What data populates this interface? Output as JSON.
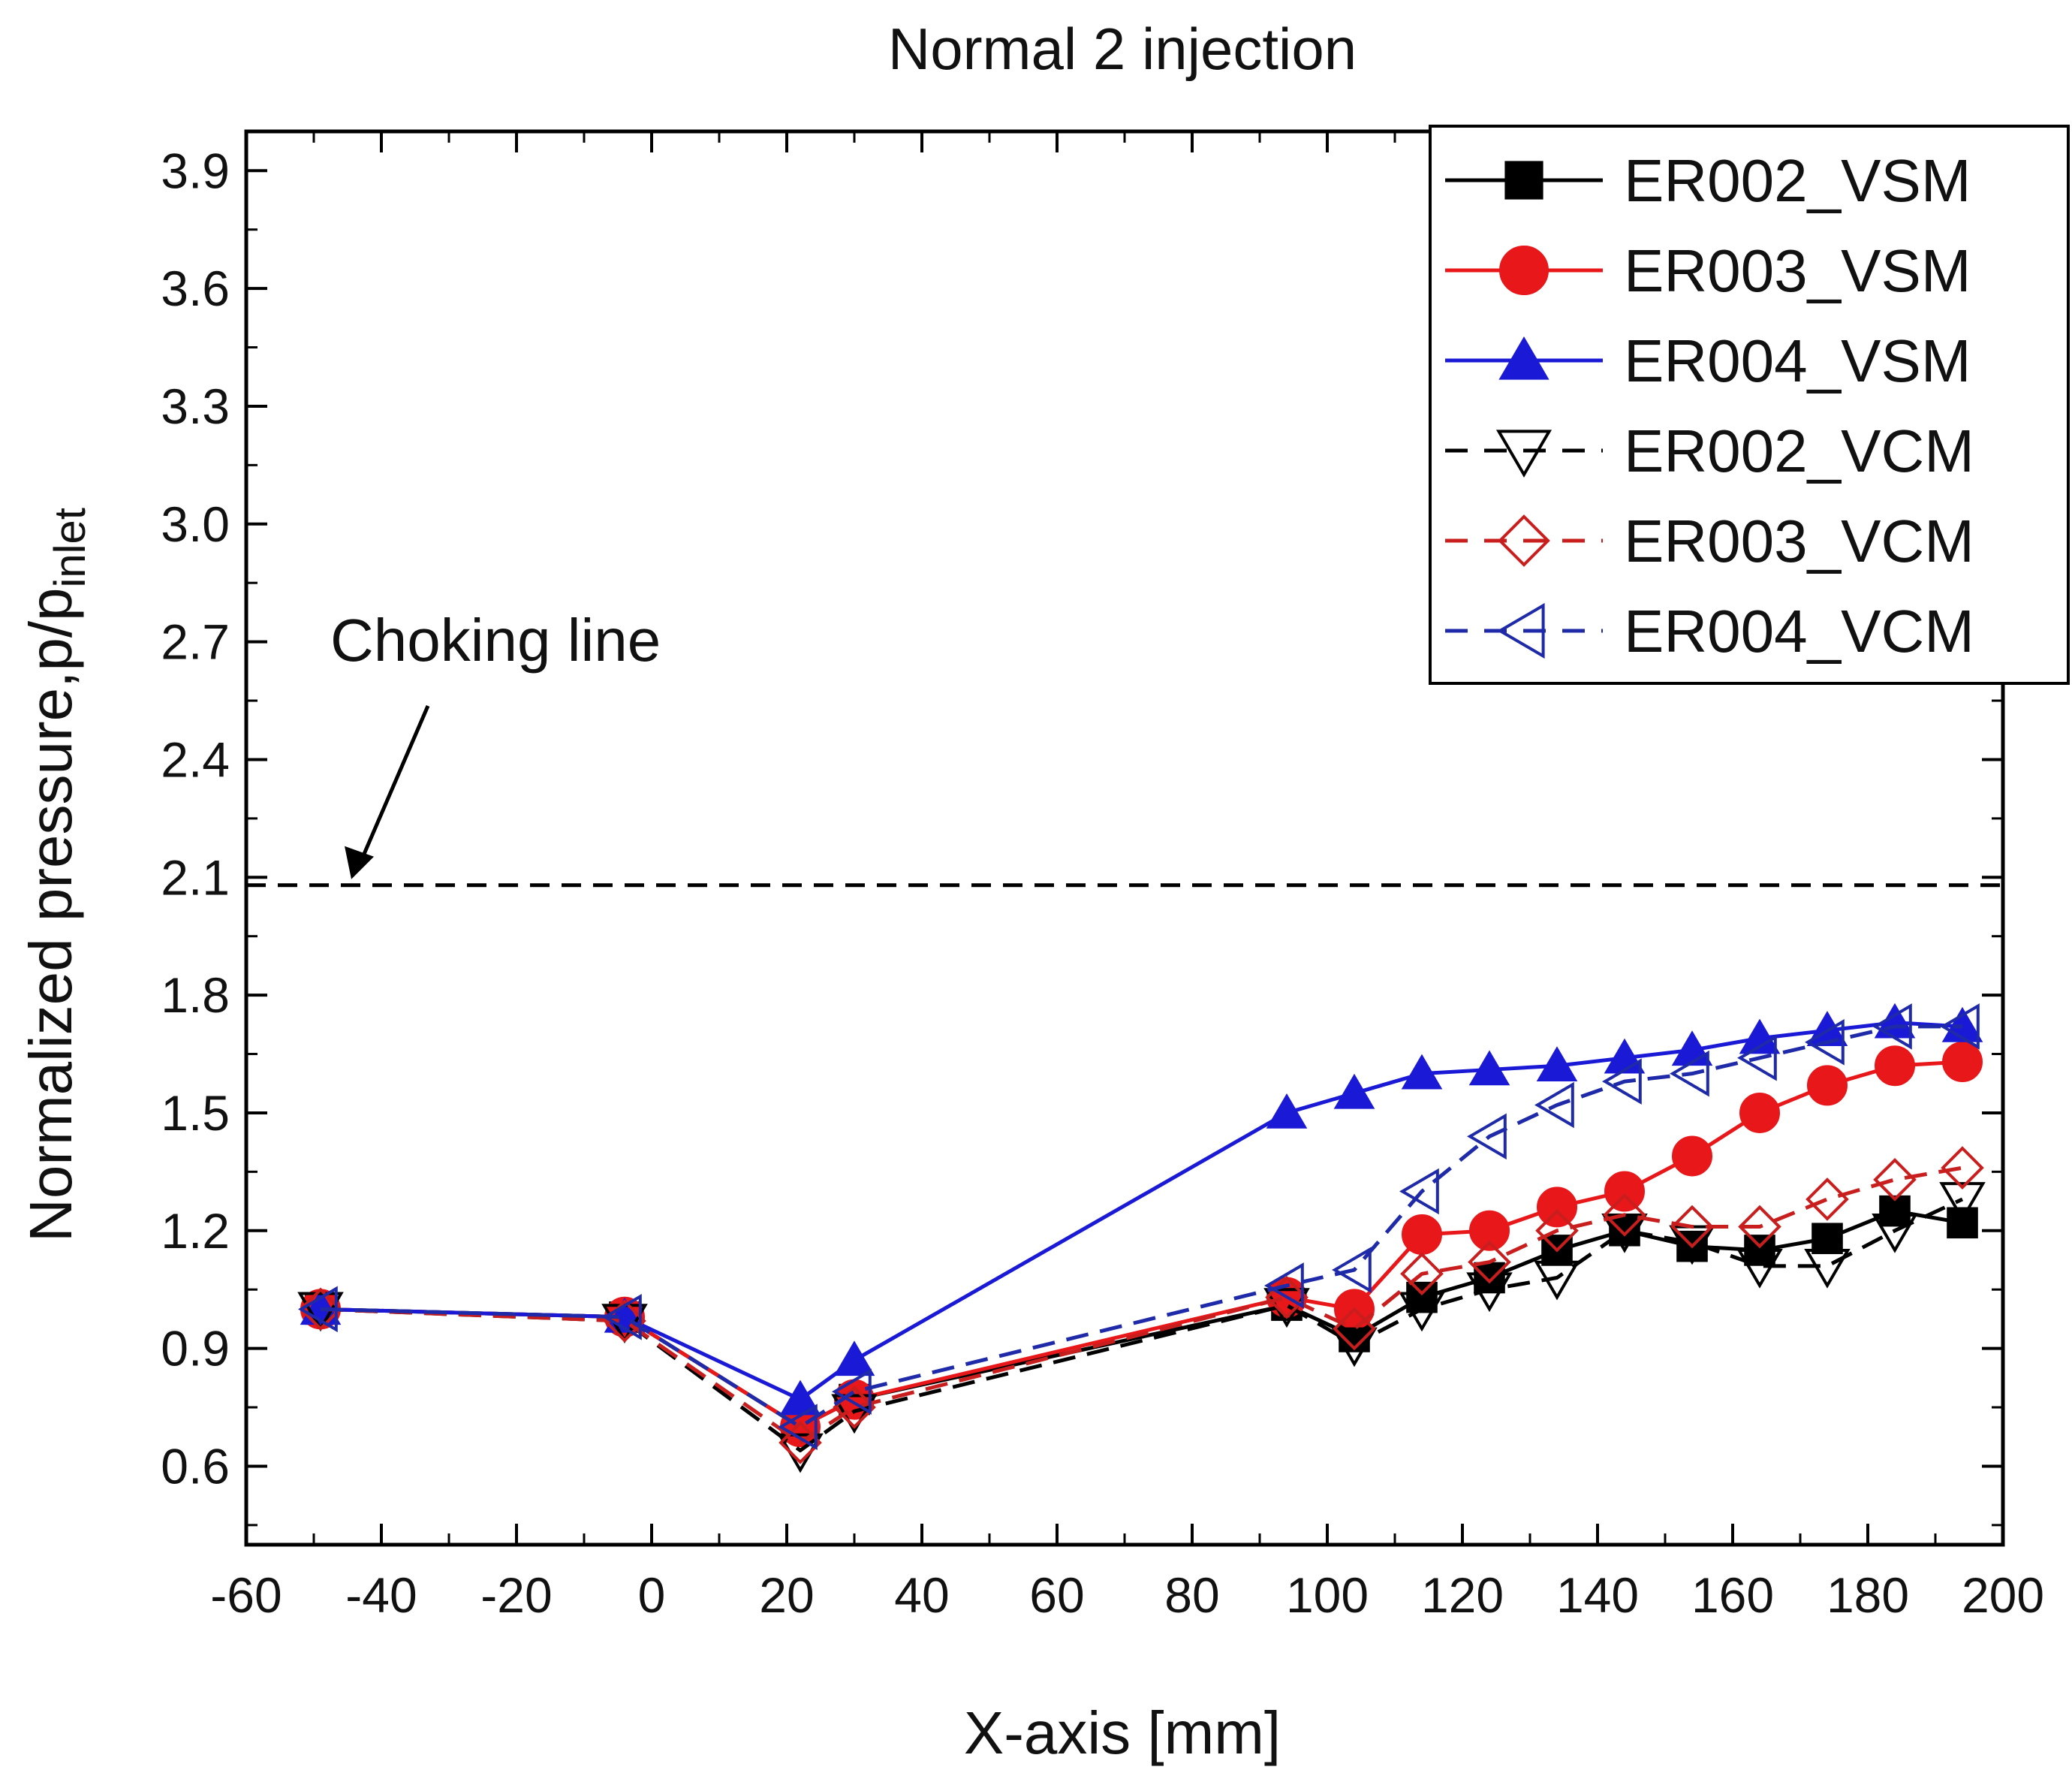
{
  "chart_data": {
    "type": "line",
    "title": "Normal 2 injection",
    "xlabel": "X-axis [mm]",
    "ylabel": {
      "main": "Normalized pressure,p/p",
      "sub": "inlet"
    },
    "xlim": [
      -60,
      200
    ],
    "ylim": [
      0.4,
      4.0
    ],
    "xticks": [
      -60,
      -40,
      -20,
      0,
      20,
      40,
      60,
      80,
      100,
      120,
      140,
      160,
      180,
      200
    ],
    "xtick_labels": [
      "-60",
      "-40",
      "-20",
      "0",
      "20",
      "40",
      "60",
      "80",
      "100",
      "120",
      "140",
      "160",
      "180",
      "200"
    ],
    "yticks": [
      0.6,
      0.9,
      1.2,
      1.5,
      1.8,
      2.1,
      2.4,
      2.7,
      3.0,
      3.3,
      3.6,
      3.9
    ],
    "ytick_labels": [
      "0.6",
      "0.9",
      "1.2",
      "1.5",
      "1.8",
      "2.1",
      "2.4",
      "2.7",
      "3.0",
      "3.3",
      "3.6",
      "3.9"
    ],
    "grid": false,
    "legend_position": "top-right",
    "reference_line": {
      "y": 2.08,
      "label": "Choking line",
      "color": "#000000",
      "style": "dashed"
    },
    "series": [
      {
        "name": "ER002_VSM",
        "color": "#000000",
        "marker": "filled-square",
        "dash": "solid",
        "x": [
          -49,
          -4,
          22,
          30,
          94,
          104,
          114,
          124,
          134,
          144,
          154,
          164,
          174,
          184,
          194
        ],
        "y": [
          1.0,
          0.98,
          0.7,
          0.77,
          1.01,
          0.93,
          1.03,
          1.08,
          1.15,
          1.2,
          1.16,
          1.15,
          1.18,
          1.25,
          1.22
        ]
      },
      {
        "name": "ER003_VSM",
        "color": "#e8171a",
        "marker": "filled-circle",
        "dash": "solid",
        "x": [
          -49,
          -4,
          22,
          30,
          94,
          104,
          114,
          124,
          134,
          144,
          154,
          164,
          174,
          184,
          194
        ],
        "y": [
          1.0,
          0.98,
          0.7,
          0.77,
          1.03,
          1.0,
          1.19,
          1.2,
          1.26,
          1.3,
          1.39,
          1.5,
          1.57,
          1.62,
          1.63
        ]
      },
      {
        "name": "ER004_VSM",
        "color": "#1a1ad6",
        "marker": "filled-triangle-up",
        "dash": "solid",
        "x": [
          -49,
          -4,
          22,
          30,
          94,
          104,
          114,
          124,
          134,
          144,
          154,
          164,
          174,
          184,
          194
        ],
        "y": [
          1.0,
          0.98,
          0.77,
          0.87,
          1.5,
          1.55,
          1.6,
          1.61,
          1.62,
          1.64,
          1.66,
          1.69,
          1.71,
          1.73,
          1.72
        ]
      },
      {
        "name": "ER002_VCM",
        "color": "#000000",
        "marker": "open-triangle-down",
        "dash": "dashed",
        "x": [
          -49,
          -4,
          22,
          30,
          94,
          104,
          114,
          124,
          134,
          144,
          154,
          164,
          174,
          184,
          194
        ],
        "y": [
          1.0,
          0.97,
          0.64,
          0.74,
          1.01,
          0.91,
          1.0,
          1.05,
          1.08,
          1.2,
          1.17,
          1.11,
          1.11,
          1.2,
          1.28
        ]
      },
      {
        "name": "ER003_VCM",
        "color": "#c81e1e",
        "marker": "open-diamond",
        "dash": "dashed",
        "x": [
          -49,
          -4,
          22,
          30,
          94,
          104,
          114,
          124,
          134,
          144,
          154,
          164,
          174,
          184,
          194
        ],
        "y": [
          1.0,
          0.97,
          0.66,
          0.75,
          1.03,
          0.95,
          1.09,
          1.12,
          1.2,
          1.24,
          1.21,
          1.21,
          1.28,
          1.33,
          1.36
        ]
      },
      {
        "name": "ER004_VCM",
        "color": "#1e2aa8",
        "marker": "open-triangle-left",
        "dash": "dashed",
        "x": [
          -49,
          -4,
          22,
          30,
          94,
          104,
          114,
          124,
          134,
          144,
          154,
          164,
          174,
          184,
          194
        ],
        "y": [
          1.0,
          0.98,
          0.7,
          0.79,
          1.06,
          1.1,
          1.3,
          1.44,
          1.52,
          1.58,
          1.6,
          1.64,
          1.68,
          1.72,
          1.72
        ]
      }
    ]
  }
}
